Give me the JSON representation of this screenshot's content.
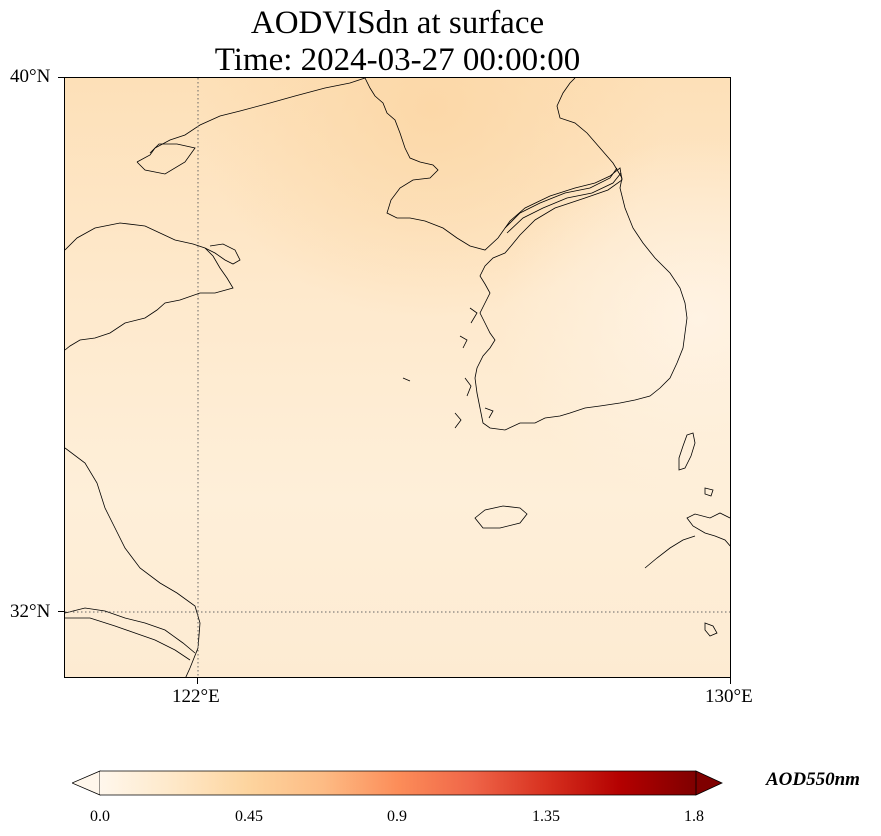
{
  "title": {
    "line1": "AODVISdn at surface",
    "line2": "Time: 2024-03-27 00:00:00"
  },
  "axes": {
    "lat_labels": [
      "40°N",
      "32°N"
    ],
    "lon_labels": [
      "122°E",
      "130°E"
    ]
  },
  "map": {
    "extent_lon": [
      120,
      130
    ],
    "extent_lat": [
      31,
      40
    ],
    "gridlines": {
      "lon": 122,
      "lat": 32,
      "style": "dotted"
    },
    "field_colormap": "OrRd",
    "field_value_approx": "0.05–0.3 (light peach/orange)"
  },
  "colorbar": {
    "label": "AOD550nm",
    "ticks": [
      "0.0",
      "0.45",
      "0.9",
      "1.35",
      "1.8"
    ],
    "min": 0.0,
    "max": 1.8,
    "extend": "both",
    "colors": [
      "#fff7ec",
      "#fee8c8",
      "#fdd49e",
      "#fdbb84",
      "#fc8d59",
      "#ef6548",
      "#d7301f",
      "#b30000",
      "#7f0000"
    ]
  }
}
